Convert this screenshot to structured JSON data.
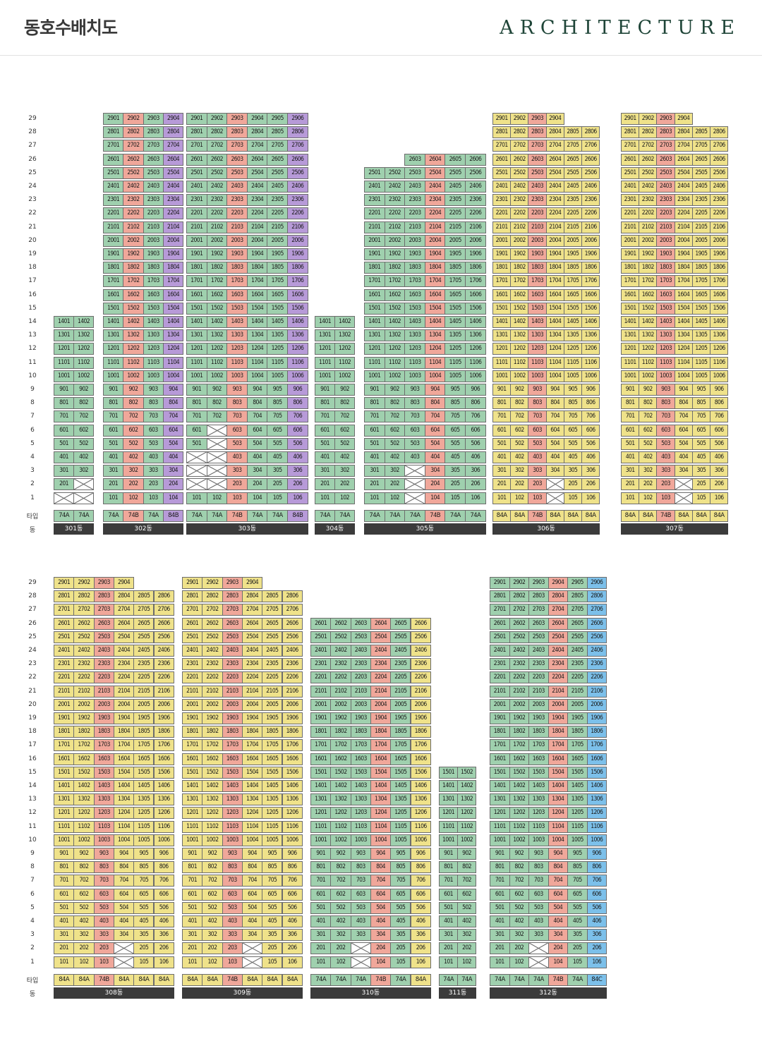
{
  "header": {
    "title": "동호수배치도",
    "brand": "ARCHITECTURE"
  },
  "labels": {
    "type": "타입",
    "dong": "동"
  },
  "colors": {
    "74A": "#9fd0ae",
    "74B": "#f0a79a",
    "84A": "#efe28a",
    "84B": "#b79ad8",
    "84C": "#7cc0ea"
  },
  "sections": [
    {
      "floors": 29,
      "buildings": [
        {
          "name": "301동",
          "min_floor": 1,
          "max_floors": [
            14,
            14
          ],
          "empty": [
            [
              1,
              1,
              1
            ],
            [
              2,
              1,
              2
            ]
          ],
          "types": [
            "74A",
            "74A"
          ]
        },
        {
          "name": "302동",
          "min_floor": 1,
          "max_floors": [
            29,
            29,
            29,
            29
          ],
          "empty": [
            [
              1,
              2,
              1
            ],
            [
              2,
              2,
              1
            ]
          ],
          "types": [
            "74A",
            "74B",
            "74A",
            "84B"
          ]
        },
        {
          "name": "303동",
          "min_floor": 1,
          "max_floors": [
            29,
            29,
            29,
            29,
            29,
            29
          ],
          "empty": [
            [
              1,
              2,
              4
            ],
            [
              2,
              2,
              6
            ]
          ],
          "types": [
            "74A",
            "74A",
            "74B",
            "74A",
            "74A",
            "84B"
          ]
        },
        {
          "name": "304동",
          "min_floor": 1,
          "max_floors": [
            14,
            14
          ],
          "empty": [],
          "types": [
            "74A",
            "74A"
          ]
        },
        {
          "name": "305동",
          "min_floor": 1,
          "max_floors": [
            25,
            25,
            26,
            26,
            26,
            26
          ],
          "empty": [
            [
              3,
              1,
              3
            ]
          ],
          "types": [
            "74A",
            "74A",
            "74A",
            "74B",
            "74A",
            "74A"
          ]
        },
        {
          "name": "306동",
          "min_floor": 1,
          "max_floors": [
            29,
            29,
            29,
            29,
            28,
            28
          ],
          "empty": [
            [
              4,
              1,
              2
            ]
          ],
          "types": [
            "84A",
            "84A",
            "74B",
            "84A",
            "84A",
            "84A"
          ]
        },
        {
          "name": "307동",
          "min_floor": 1,
          "max_floors": [
            29,
            29,
            29,
            29,
            28,
            28
          ],
          "empty": [
            [
              4,
              1,
              2
            ]
          ],
          "types": [
            "84A",
            "84A",
            "74B",
            "84A",
            "84A",
            "84A"
          ]
        }
      ]
    },
    {
      "floors": 29,
      "buildings": [
        {
          "name": "308동",
          "min_floor": 1,
          "max_floors": [
            29,
            29,
            29,
            29,
            28,
            28
          ],
          "empty": [
            [
              4,
              1,
              2
            ]
          ],
          "types": [
            "84A",
            "84A",
            "74B",
            "84A",
            "84A",
            "84A"
          ]
        },
        {
          "name": "309동",
          "min_floor": 1,
          "max_floors": [
            29,
            29,
            29,
            29,
            28,
            28
          ],
          "empty": [
            [
              4,
              1,
              2
            ]
          ],
          "types": [
            "84A",
            "84A",
            "74B",
            "84A",
            "84A",
            "84A"
          ]
        },
        {
          "name": "310동",
          "min_floor": 1,
          "max_floors": [
            26,
            26,
            26,
            26,
            26,
            26
          ],
          "empty": [
            [
              3,
              1,
              2
            ]
          ],
          "types": [
            "74A",
            "74A",
            "74A",
            "74B",
            "74A",
            "84A"
          ]
        },
        {
          "name": "311동",
          "min_floor": 1,
          "max_floors": [
            15,
            15
          ],
          "empty": [],
          "types": [
            "74A",
            "74A"
          ]
        },
        {
          "name": "312동",
          "min_floor": 1,
          "max_floors": [
            29,
            29,
            29,
            29,
            29,
            29
          ],
          "empty": [
            [
              3,
              1,
              2
            ]
          ],
          "types": [
            "74A",
            "74A",
            "74A",
            "74B",
            "74A",
            "84C"
          ]
        }
      ]
    }
  ]
}
